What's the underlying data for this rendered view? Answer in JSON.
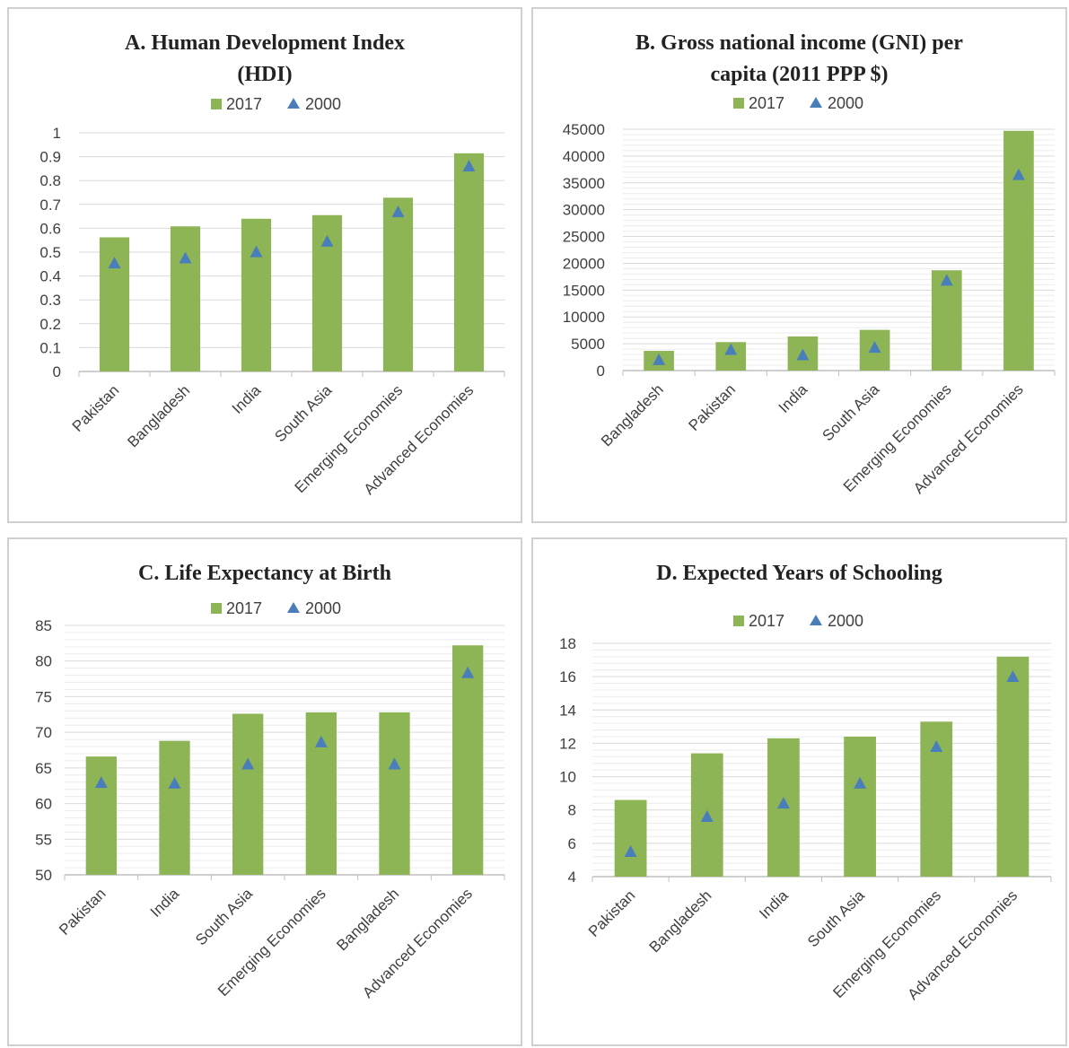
{
  "colors": {
    "bar": "#8DB556",
    "marker": "#4A7EBB",
    "grid": "#D9D9D9",
    "axis": "#BFBFBF",
    "text": "#404040"
  },
  "chart_data": [
    {
      "type": "bar",
      "title": [
        "A. Human Development Index",
        "(HDI)"
      ],
      "categories": [
        "Pakistan",
        "Bangladesh",
        "India",
        "South Asia",
        "Emerging Economies",
        "Advanced Economies"
      ],
      "series": [
        {
          "name": "2017",
          "kind": "bar",
          "values": [
            0.562,
            0.608,
            0.64,
            0.655,
            0.728,
            0.914
          ]
        },
        {
          "name": "2000",
          "kind": "marker",
          "values": [
            0.447,
            0.468,
            0.494,
            0.538,
            0.661,
            0.853
          ]
        }
      ],
      "ylim": [
        0,
        1
      ],
      "ticks": [
        "0",
        "0.1",
        "0.2",
        "0.3",
        "0.4",
        "0.5",
        "0.6",
        "0.7",
        "0.8",
        "0.9",
        "1"
      ],
      "grid": true,
      "legend": "top"
    },
    {
      "type": "bar",
      "title": [
        "B. Gross national income (GNI) per",
        "capita (2011 PPP $)"
      ],
      "categories": [
        "Bangladesh",
        "Pakistan",
        "India",
        "South Asia",
        "Emerging Economies",
        "Advanced Economies"
      ],
      "series": [
        {
          "name": "2017",
          "kind": "bar",
          "values": [
            3677,
            5311,
            6353,
            7591,
            18700,
            44700
          ]
        },
        {
          "name": "2000",
          "kind": "marker",
          "values": [
            1700,
            3600,
            2600,
            4000,
            16500,
            36200
          ]
        }
      ],
      "ylim": [
        0,
        45000
      ],
      "ticks": [
        "0",
        "5000",
        "10000",
        "15000",
        "20000",
        "25000",
        "30000",
        "35000",
        "40000",
        "45000"
      ],
      "grid": true,
      "legend": "top"
    },
    {
      "type": "bar",
      "title": [
        "C. Life Expectancy at Birth"
      ],
      "categories": [
        "Pakistan",
        "India",
        "South Asia",
        "Emerging Economies",
        "Bangladesh",
        "Advanced Economies"
      ],
      "series": [
        {
          "name": "2017",
          "kind": "bar",
          "values": [
            66.6,
            68.8,
            72.6,
            72.8,
            72.8,
            82.2
          ]
        },
        {
          "name": "2000",
          "kind": "marker",
          "values": [
            62.7,
            62.6,
            65.3,
            68.4,
            65.3,
            78.1
          ]
        }
      ],
      "ylim": [
        50,
        85
      ],
      "ticks": [
        "50",
        "55",
        "60",
        "65",
        "70",
        "75",
        "80",
        "85"
      ],
      "grid": true,
      "legend": "top"
    },
    {
      "type": "bar",
      "title": [
        "D. Expected Years of Schooling"
      ],
      "categories": [
        "Pakistan",
        "Bangladesh",
        "India",
        "South Asia",
        "Emerging Economies",
        "Advanced Economies"
      ],
      "series": [
        {
          "name": "2017",
          "kind": "bar",
          "values": [
            8.6,
            11.4,
            12.3,
            12.4,
            13.3,
            17.2
          ]
        },
        {
          "name": "2000",
          "kind": "marker",
          "values": [
            5.4,
            7.5,
            8.3,
            9.5,
            11.7,
            15.9
          ]
        }
      ],
      "ylim": [
        4,
        18
      ],
      "ticks": [
        "4",
        "6",
        "8",
        "10",
        "12",
        "14",
        "16",
        "18"
      ],
      "grid": true,
      "legend": "top"
    }
  ]
}
